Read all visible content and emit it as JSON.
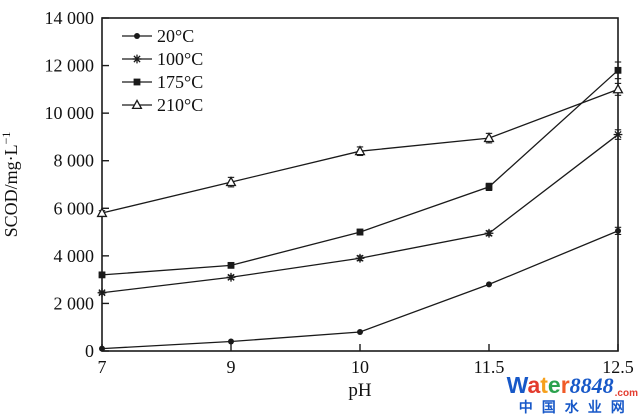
{
  "chart_data": {
    "type": "line",
    "title": "",
    "xlabel": "pH",
    "ylabel": "SCOD/mg·L⁻¹",
    "ylim": [
      0,
      14000
    ],
    "y_tick_labels": [
      "0",
      "2 000",
      "4 000",
      "6 000",
      "8 000",
      "10 000",
      "12 000",
      "14 000"
    ],
    "x_tick_labels": [
      "7",
      "9",
      "10",
      "11.5",
      "12.5"
    ],
    "x_values": [
      7,
      9,
      10,
      11.5,
      12.5
    ],
    "grid": false,
    "legend_position": "top-left-inside",
    "axis_color": "#1a1a1a",
    "series": [
      {
        "name": "20°C",
        "marker": "filled-circle",
        "values": [
          100,
          400,
          800,
          2800,
          5050
        ],
        "errors": [
          0,
          0,
          0,
          0,
          150
        ]
      },
      {
        "name": "100°C",
        "marker": "asterisk",
        "values": [
          2450,
          3100,
          3900,
          4950,
          9100
        ],
        "errors": [
          60,
          80,
          100,
          100,
          200
        ]
      },
      {
        "name": "175°C",
        "marker": "filled-square",
        "values": [
          3200,
          3600,
          5000,
          6900,
          11800
        ],
        "errors": [
          60,
          60,
          120,
          150,
          350
        ]
      },
      {
        "name": "210°C",
        "marker": "open-triangle",
        "values": [
          5800,
          7100,
          8400,
          8950,
          11000
        ],
        "errors": [
          100,
          200,
          180,
          200,
          250
        ]
      }
    ]
  },
  "watermark": {
    "brand_letters": [
      {
        "ch": "W",
        "color": "#1758c8"
      },
      {
        "ch": "a",
        "color": "#e33b2e"
      },
      {
        "ch": "t",
        "color": "#f6a01c"
      },
      {
        "ch": "e",
        "color": "#2ba24d"
      },
      {
        "ch": "r",
        "color": "#f05a28"
      }
    ],
    "brand_number": "8848",
    "brand_number_color": "#1758c8",
    "brand_tld": ".com",
    "brand_tld_color": "#e33b2e",
    "subtitle": "中国水业网",
    "subtitle_color": "#1758c8"
  }
}
